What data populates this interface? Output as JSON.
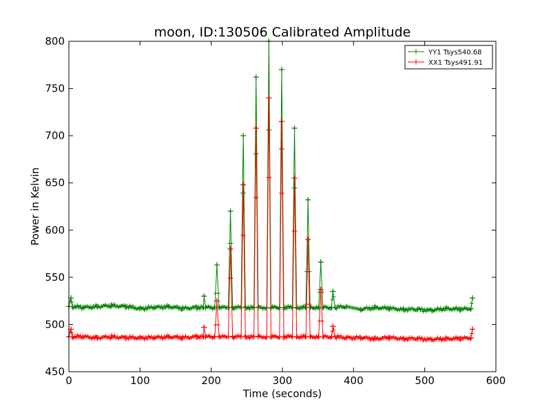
{
  "chart_data": {
    "type": "line",
    "title": "moon, ID:130506 Calibrated Amplitude",
    "xlabel": "Time (seconds)",
    "ylabel": "Power in Kelvin",
    "xlim": [
      0,
      600
    ],
    "ylim": [
      450,
      800
    ],
    "x_ticks": [
      0,
      100,
      200,
      300,
      400,
      500,
      600
    ],
    "y_ticks": [
      450,
      500,
      550,
      600,
      650,
      700,
      750,
      800
    ],
    "grid": false,
    "legend_position": "top-right",
    "series": [
      {
        "name": "YY1 Tsys540.68",
        "color": "#008000",
        "marker": "+",
        "baseline": 518,
        "points": [
          [
            0,
            519
          ],
          [
            3,
            528
          ],
          [
            5,
            519
          ],
          [
            20,
            518
          ],
          [
            40,
            519
          ],
          [
            60,
            520
          ],
          [
            80,
            519
          ],
          [
            100,
            517
          ],
          [
            120,
            518
          ],
          [
            140,
            519
          ],
          [
            160,
            517
          ],
          [
            180,
            518
          ],
          [
            189,
            518
          ],
          [
            190,
            530
          ],
          [
            192,
            518
          ],
          [
            205,
            518
          ],
          [
            208,
            563
          ],
          [
            211,
            518
          ],
          [
            224,
            518
          ],
          [
            227,
            620
          ],
          [
            230,
            518
          ],
          [
            242,
            518
          ],
          [
            245,
            700
          ],
          [
            248,
            518
          ],
          [
            260,
            518
          ],
          [
            263,
            762
          ],
          [
            266,
            518
          ],
          [
            278,
            518
          ],
          [
            281,
            800
          ],
          [
            284,
            518
          ],
          [
            296,
            518
          ],
          [
            299,
            770
          ],
          [
            302,
            518
          ],
          [
            314,
            518
          ],
          [
            317,
            708
          ],
          [
            320,
            518
          ],
          [
            333,
            518
          ],
          [
            336,
            632
          ],
          [
            339,
            518
          ],
          [
            351,
            518
          ],
          [
            354,
            566
          ],
          [
            357,
            518
          ],
          [
            369,
            518
          ],
          [
            371,
            535
          ],
          [
            374,
            518
          ],
          [
            390,
            519
          ],
          [
            410,
            516
          ],
          [
            430,
            518
          ],
          [
            450,
            517
          ],
          [
            470,
            516
          ],
          [
            490,
            516
          ],
          [
            510,
            515
          ],
          [
            530,
            517
          ],
          [
            550,
            516
          ],
          [
            565,
            517
          ],
          [
            567,
            528
          ]
        ]
      },
      {
        "name": "XX1 Tsys491.91",
        "color": "#ff0000",
        "marker": "+",
        "baseline": 486,
        "points": [
          [
            0,
            487
          ],
          [
            3,
            495
          ],
          [
            5,
            487
          ],
          [
            20,
            487
          ],
          [
            40,
            486
          ],
          [
            60,
            487
          ],
          [
            80,
            486
          ],
          [
            100,
            486
          ],
          [
            120,
            486
          ],
          [
            140,
            487
          ],
          [
            160,
            486
          ],
          [
            180,
            487
          ],
          [
            189,
            487
          ],
          [
            190,
            497
          ],
          [
            192,
            487
          ],
          [
            205,
            487
          ],
          [
            208,
            525
          ],
          [
            211,
            487
          ],
          [
            224,
            487
          ],
          [
            227,
            580
          ],
          [
            230,
            487
          ],
          [
            242,
            487
          ],
          [
            245,
            648
          ],
          [
            248,
            487
          ],
          [
            260,
            487
          ],
          [
            263,
            708
          ],
          [
            266,
            487
          ],
          [
            278,
            487
          ],
          [
            281,
            740
          ],
          [
            284,
            487
          ],
          [
            296,
            487
          ],
          [
            299,
            715
          ],
          [
            302,
            487
          ],
          [
            314,
            487
          ],
          [
            317,
            655
          ],
          [
            320,
            487
          ],
          [
            333,
            487
          ],
          [
            336,
            590
          ],
          [
            339,
            487
          ],
          [
            351,
            487
          ],
          [
            354,
            537
          ],
          [
            357,
            487
          ],
          [
            369,
            487
          ],
          [
            371,
            498
          ],
          [
            374,
            487
          ],
          [
            390,
            486
          ],
          [
            410,
            486
          ],
          [
            430,
            485
          ],
          [
            450,
            486
          ],
          [
            470,
            485
          ],
          [
            490,
            485
          ],
          [
            510,
            484
          ],
          [
            530,
            485
          ],
          [
            550,
            485
          ],
          [
            565,
            486
          ],
          [
            567,
            495
          ]
        ]
      }
    ]
  }
}
